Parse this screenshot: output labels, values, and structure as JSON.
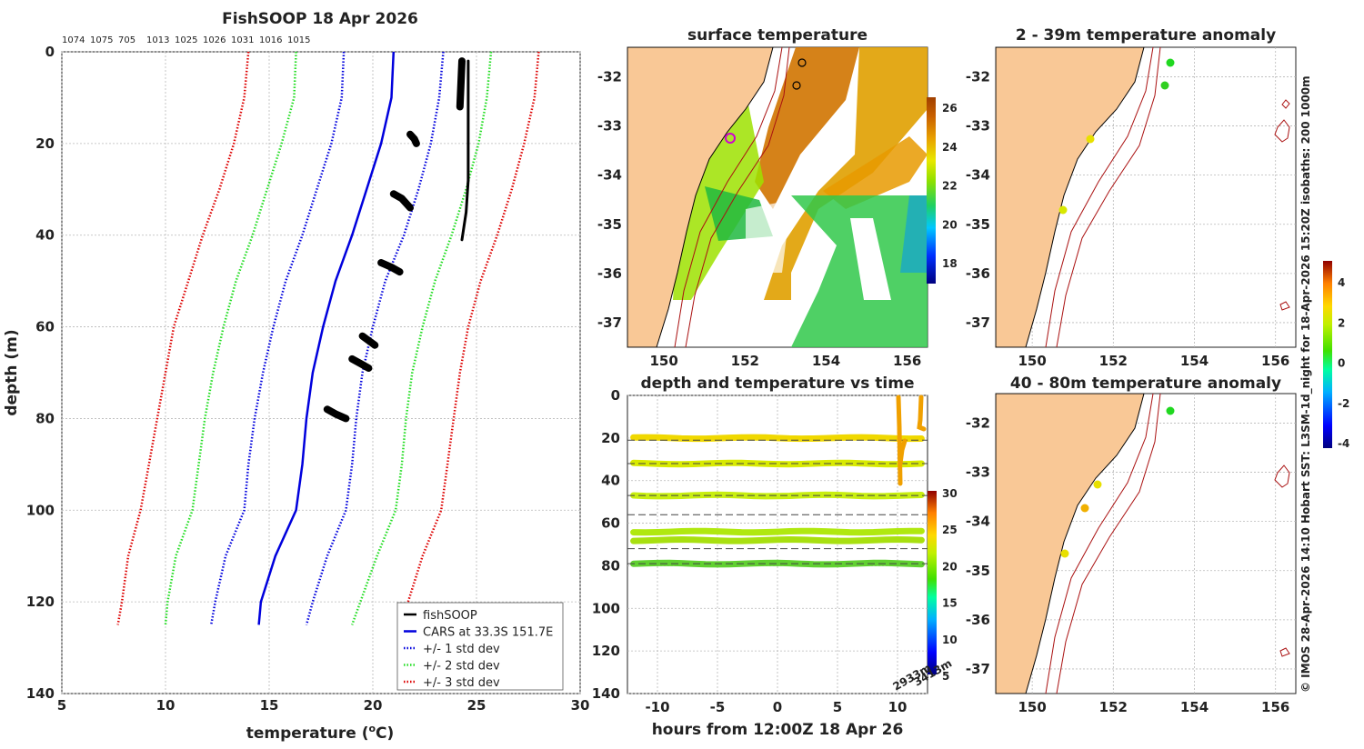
{
  "chart_data": [
    {
      "type": "line",
      "name": "profile",
      "title": "FishSOOP 18 Apr 2026",
      "top_labels": [
        "1074",
        "1075",
        "705",
        "1013",
        "1025",
        "1026",
        "1031",
        "1016",
        "1015"
      ],
      "xlabel": "temperature (°C)",
      "ylabel": "depth (m)",
      "xlim": [
        5,
        30
      ],
      "ylim": [
        0,
        140
      ],
      "xticks": [
        "5",
        "10",
        "15",
        "20",
        "25",
        "30"
      ],
      "yticks": [
        "0",
        "20",
        "40",
        "60",
        "80",
        "100",
        "120",
        "140"
      ],
      "depths": [
        0,
        10,
        20,
        30,
        40,
        50,
        60,
        70,
        80,
        90,
        100,
        110,
        120,
        125
      ],
      "series": [
        {
          "name": "CARS at 33.3S 151.7E",
          "color": "#0000dd",
          "style": "solid",
          "values": [
            21.0,
            20.9,
            20.4,
            19.7,
            19.0,
            18.2,
            17.6,
            17.1,
            16.8,
            16.6,
            16.3,
            15.3,
            14.6,
            14.5
          ]
        },
        {
          "name": "+/- 1 std dev (low)",
          "color": "#0000dd",
          "style": "dotted",
          "values": [
            18.6,
            18.5,
            18.0,
            17.3,
            16.6,
            15.8,
            15.2,
            14.7,
            14.3,
            14.0,
            13.8,
            12.9,
            12.4,
            12.2
          ]
        },
        {
          "name": "+/- 1 std dev (high)",
          "color": "#0000dd",
          "style": "dotted",
          "values": [
            23.4,
            23.2,
            22.8,
            22.2,
            21.5,
            20.6,
            20.0,
            19.5,
            19.2,
            19.0,
            18.7,
            17.8,
            17.1,
            16.8
          ]
        },
        {
          "name": "+/- 2 std dev (low)",
          "color": "#22dd22",
          "style": "dotted",
          "values": [
            16.3,
            16.2,
            15.6,
            14.9,
            14.2,
            13.4,
            12.8,
            12.3,
            11.9,
            11.6,
            11.3,
            10.5,
            10.1,
            10.0
          ]
        },
        {
          "name": "+/- 2 std dev (high)",
          "color": "#22dd22",
          "style": "dotted",
          "values": [
            25.7,
            25.5,
            25.1,
            24.5,
            23.8,
            23.0,
            22.4,
            21.9,
            21.6,
            21.4,
            21.1,
            20.2,
            19.4,
            19.0
          ]
        },
        {
          "name": "+/- 3 std dev (low)",
          "color": "#dd0000",
          "style": "dotted",
          "values": [
            14.0,
            13.8,
            13.3,
            12.6,
            11.8,
            11.1,
            10.4,
            10.0,
            9.6,
            9.2,
            8.8,
            8.2,
            7.9,
            7.7
          ]
        },
        {
          "name": "+/- 3 std dev (high)",
          "color": "#dd0000",
          "style": "dotted",
          "values": [
            28.0,
            27.8,
            27.3,
            26.7,
            26.0,
            25.2,
            24.6,
            24.2,
            23.9,
            23.6,
            23.3,
            22.4,
            21.7,
            21.4
          ]
        }
      ],
      "fishsoop_segments": [
        {
          "depths": [
            2,
            12
          ],
          "temps": [
            24.3,
            24.2
          ]
        },
        {
          "depths": [
            2,
            10,
            20,
            28,
            35,
            41
          ],
          "temps": [
            24.6,
            24.6,
            24.6,
            24.6,
            24.5,
            24.3
          ]
        },
        {
          "depths": [
            18,
            19,
            20
          ],
          "temps": [
            21.8,
            22.0,
            22.1
          ]
        },
        {
          "depths": [
            31,
            32,
            34
          ],
          "temps": [
            21.0,
            21.4,
            21.8
          ]
        },
        {
          "depths": [
            46,
            47,
            48
          ],
          "temps": [
            20.4,
            20.9,
            21.3
          ]
        },
        {
          "depths": [
            62,
            63,
            64
          ],
          "temps": [
            19.5,
            19.8,
            20.1
          ]
        },
        {
          "depths": [
            67,
            68,
            69
          ],
          "temps": [
            19.0,
            19.4,
            19.8
          ]
        },
        {
          "depths": [
            78,
            79,
            80
          ],
          "temps": [
            17.8,
            18.2,
            18.7
          ]
        }
      ],
      "legend": [
        "fishSOOP",
        "CARS at 33.3S 151.7E",
        "+/- 1 std dev",
        "+/- 2 std dev",
        "+/- 3 std dev"
      ]
    },
    {
      "type": "heatmap",
      "name": "surface-temperature-map",
      "title": "surface temperature",
      "xticks": [
        "150",
        "152",
        "154",
        "156"
      ],
      "yticks": [
        "-32",
        "-33",
        "-34",
        "-35",
        "-36",
        "-37"
      ],
      "colorbar_ticks": [
        "26",
        "24",
        "22",
        "20",
        "18"
      ]
    },
    {
      "type": "scatter",
      "name": "depth-temperature-vs-time",
      "title": "depth and temperature vs time",
      "xlabel": "hours from 12:00Z 18 Apr 26",
      "xticks": [
        "-10",
        "-5",
        "0",
        "5",
        "10"
      ],
      "yticks": [
        "0",
        "20",
        "40",
        "60",
        "80",
        "100",
        "120",
        "140"
      ],
      "xlim": [
        -12.5,
        12.5
      ],
      "ylim": [
        0,
        140
      ],
      "band_depths": [
        20,
        32,
        47,
        64,
        68,
        79
      ],
      "dashed_depths": [
        21,
        32,
        47,
        56,
        72,
        79
      ],
      "colorbar_ticks": [
        "30",
        "25",
        "20",
        "15",
        "10",
        "5"
      ],
      "corner_labels": [
        "2933m",
        "3413m"
      ]
    },
    {
      "type": "scatter",
      "name": "anomaly-2-39m",
      "title": "2 - 39m temperature anomaly",
      "xticks": [
        "150",
        "152",
        "154",
        "156"
      ],
      "yticks": [
        "-32",
        "-33",
        "-34",
        "-35",
        "-36",
        "-37"
      ]
    },
    {
      "type": "scatter",
      "name": "anomaly-40-80m",
      "title": "40 - 80m temperature anomaly",
      "xticks": [
        "150",
        "152",
        "154",
        "156"
      ],
      "yticks": [
        "-32",
        "-33",
        "-34",
        "-35",
        "-36",
        "-37"
      ],
      "colorbar_ticks": [
        "4",
        "2",
        "0",
        "-2",
        "-4"
      ]
    }
  ],
  "credit": "© IMOS 28-Apr-2026 14:10 Hobart SST: L3SM-1d_night for 18-Apr-2026 15:20Z isobaths: 200  1000m",
  "colors": {
    "land": "#f9c896",
    "cars": "#0000dd",
    "std1": "#0000dd",
    "std2": "#22dd22",
    "std3": "#dd0000",
    "isobath": "#aa1111"
  }
}
